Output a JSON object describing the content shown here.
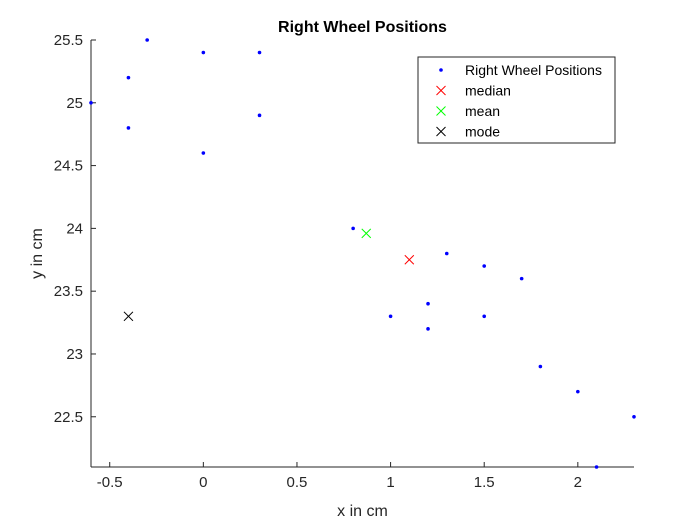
{
  "chart_data": {
    "type": "scatter",
    "title": "Right Wheel Positions",
    "xlabel": "x in cm",
    "ylabel": "y in cm",
    "xlim": [
      -0.6,
      2.3
    ],
    "ylim": [
      22.1,
      25.5
    ],
    "xticks": [
      -0.5,
      0,
      0.5,
      1,
      1.5,
      2
    ],
    "xtick_labels": [
      "-0.5",
      "0",
      "0.5",
      "1",
      "1.5",
      "2"
    ],
    "yticks": [
      22.5,
      23,
      23.5,
      24,
      24.5,
      25,
      25.5
    ],
    "ytick_labels": [
      "22.5",
      "23",
      "23.5",
      "24",
      "24.5",
      "25",
      "25.5"
    ],
    "grid": false,
    "legend_position": "top-right",
    "series": [
      {
        "name": "Right Wheel Positions",
        "marker": "dot",
        "color": "#0000ff",
        "points": [
          [
            -0.3,
            25.5
          ],
          [
            0.0,
            25.4
          ],
          [
            0.3,
            25.4
          ],
          [
            -0.4,
            25.2
          ],
          [
            -0.6,
            25.0
          ],
          [
            -0.4,
            24.8
          ],
          [
            0.3,
            24.9
          ],
          [
            0.0,
            24.6
          ],
          [
            0.8,
            24.0
          ],
          [
            1.3,
            23.8
          ],
          [
            1.5,
            23.7
          ],
          [
            1.7,
            23.6
          ],
          [
            1.0,
            23.3
          ],
          [
            1.2,
            23.4
          ],
          [
            1.2,
            23.2
          ],
          [
            1.5,
            23.3
          ],
          [
            1.8,
            22.9
          ],
          [
            2.0,
            22.7
          ],
          [
            2.3,
            22.5
          ],
          [
            2.1,
            22.1
          ]
        ]
      },
      {
        "name": "median",
        "marker": "x",
        "color": "#ff0000",
        "points": [
          [
            1.1,
            23.75
          ]
        ]
      },
      {
        "name": "mean",
        "marker": "x",
        "color": "#00ff00",
        "points": [
          [
            0.87,
            23.96
          ]
        ]
      },
      {
        "name": "mode",
        "marker": "x",
        "color": "#000000",
        "points": [
          [
            -0.4,
            23.3
          ]
        ]
      }
    ]
  }
}
